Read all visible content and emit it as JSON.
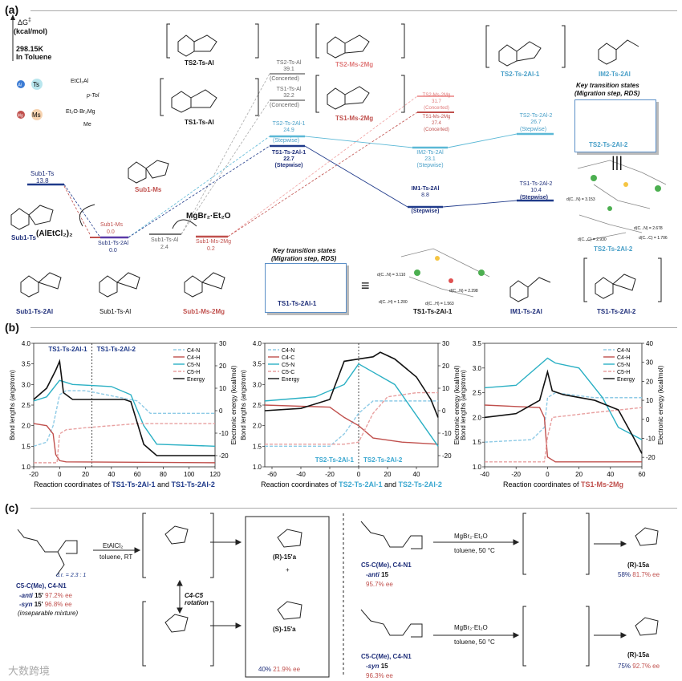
{
  "sections": {
    "a": "(a)",
    "b": "(b)",
    "c": "(c)"
  },
  "energy_diagram": {
    "axis_label": "ΔG",
    "dagger": "‡",
    "units": "(kcal/mol)",
    "temp": "298.15K",
    "solvent": "In Toluene",
    "legend_al": "EtCl₂Al",
    "legend_al_sub": "p-Tol",
    "legend_mg": "Et₂O·Br₂Mg",
    "legend_mg_sub": "Me",
    "reagent_al": "(AlEtCl₂)₂",
    "reagent_mg": "MgBr₂·Et₂O",
    "key_ts_title1": "Key transition states",
    "key_ts_title2": "(Migration step, RDS)",
    "equiv": "≡",
    "levels": [
      {
        "name": "Sub1-Ts",
        "value": "13.8",
        "cls": "navy"
      },
      {
        "name": "Sub1-Ms",
        "value": "0.0",
        "cls": "red"
      },
      {
        "name": "Sub1-Ts-2Al",
        "value": "0.0",
        "cls": "navy"
      },
      {
        "name": "Sub1-Ts-Al",
        "value": "2.4",
        "cls": "gray"
      },
      {
        "name": "Sub1-Ms-2Mg",
        "value": "0.2",
        "cls": "red"
      },
      {
        "name": "TS2-Ts-Al",
        "value": "39.1",
        "note": "(Concerted)",
        "cls": "gray"
      },
      {
        "name": "TS1-Ts-Al",
        "value": "32.2",
        "note": "(Concerted)",
        "cls": "gray"
      },
      {
        "name": "TS2-Ts-2Al-1",
        "value": "24.9",
        "note": "(Stepwise)",
        "cls": "lblue"
      },
      {
        "name": "TS1-Ts-2Al-1",
        "value": "22.7",
        "note": "(Stepwise)",
        "cls": "navy"
      },
      {
        "name": "TS2-Ms-2Mg",
        "value": "31.7",
        "note": "(Concerted)",
        "cls": "pink"
      },
      {
        "name": "TS1-Ms-2Mg",
        "value": "27.4",
        "note": "(Concerted)",
        "cls": "red"
      },
      {
        "name": "IM2-Ts-2Al",
        "value": "23.1",
        "note": "(Stepwise)",
        "cls": "lblue"
      },
      {
        "name": "IM1-Ts-2Al",
        "value": "8.8",
        "note": "(Stepwise)",
        "cls": "navy"
      },
      {
        "name": "TS2-Ts-2Al-2",
        "value": "26.7",
        "note": "(Stepwise)",
        "cls": "lblue"
      },
      {
        "name": "TS1-Ts-2Al-2",
        "value": "10.4",
        "note": "(Stepwise)",
        "cls": "navy"
      }
    ],
    "structure_labels": {
      "ts2_ts_al": "TS2-Ts-Al",
      "ts1_ts_al": "TS1-Ts-Al",
      "ts2_ms_2mg": "TS2-Ms-2Mg",
      "ts1_ms_2mg": "TS1-Ms-2Mg",
      "ts2_ts_2al_1": "TS2-Ts-2Al-1",
      "im2_ts_2al": "IM2-Ts-2Al",
      "ts2_ts_2al_2": "TS2-Ts-2Al-2",
      "ts2_ts_2al_2_3d": "TS2-Ts-2Al-2",
      "sub1_ms": "Sub1-Ms",
      "sub1_ts": "Sub1-Ts",
      "sub1_ts_2al": "Sub1-Ts-2Al",
      "sub1_ts_al": "Sub1-Ts-Al",
      "sub1_ms_2mg": "Sub1-Ms-2Mg",
      "ts1_ts_2al_1": "TS1-Ts-2Al-1",
      "ts1_ts_2al_1_3d": "TS1-Ts-2Al-1",
      "im1_ts_2al": "IM1-Ts-2Al",
      "ts1_ts_2al_2": "TS1-Ts-2Al-2"
    },
    "distances_ts1": [
      "d(C...N) = 3.110",
      "d(C...N) = 2.298",
      "d(C...H) = 1.200",
      "d(C...H) = 1.563"
    ],
    "distances_ts2": [
      "d(C...N) = 3.153",
      "d(C...N) = 2.678",
      "d(C...C) = 1.706",
      "d(C...C) = 2.930"
    ]
  },
  "chart_data": [
    {
      "type": "line",
      "legend": [
        "C4-N",
        "C4-H",
        "C5-N",
        "C5-H",
        "Energy"
      ],
      "xlabel_prefix": "Reaction coordinates of",
      "xlabel_a": "TS1-Ts-2Al-1",
      "xlabel_and": "and",
      "xlabel_b": "TS1-Ts-2Al-2",
      "ylabel": "Bond lengths (angstrom)",
      "y2label": "Electronic energy (kcal/mol)",
      "xlim": [
        -20,
        120
      ],
      "ylim": [
        1.0,
        4.0
      ],
      "y2lim": [
        -25,
        30
      ],
      "xticks": [
        "-20",
        "0",
        "20",
        "40",
        "60",
        "80",
        "100",
        "120"
      ],
      "yticks": [
        "1.0",
        "1.5",
        "2.0",
        "2.5",
        "3.0",
        "3.5",
        "4.0"
      ],
      "y2ticks": [
        "-20",
        "-10",
        "0",
        "10",
        "20",
        "30"
      ],
      "region_left": "TS1-Ts-2Al-1",
      "region_right": "TS1-Ts-2Al-2",
      "divider_x": 25,
      "series": [
        {
          "name": "C4-N",
          "x": [
            -20,
            -10,
            -5,
            0,
            5,
            20,
            60,
            70,
            120
          ],
          "y": [
            1.5,
            1.6,
            2.0,
            2.75,
            2.85,
            2.85,
            2.6,
            2.3,
            2.3
          ]
        },
        {
          "name": "C4-H",
          "x": [
            -20,
            -10,
            -5,
            -3,
            0,
            5,
            120
          ],
          "y": [
            2.05,
            2.0,
            1.8,
            1.3,
            1.15,
            1.12,
            1.1
          ]
        },
        {
          "name": "C5-N",
          "x": [
            -20,
            -10,
            0,
            10,
            40,
            55,
            65,
            75,
            120
          ],
          "y": [
            2.6,
            2.7,
            3.1,
            3.0,
            2.95,
            2.75,
            2.0,
            1.55,
            1.5
          ]
        },
        {
          "name": "C5-H",
          "x": [
            -20,
            -2,
            0,
            5,
            20,
            60,
            120
          ],
          "y": [
            1.1,
            1.1,
            1.8,
            1.9,
            1.95,
            2.05,
            2.05
          ]
        },
        {
          "name": "Energy",
          "x": [
            -20,
            -10,
            -3,
            0,
            3,
            10,
            30,
            50,
            55,
            65,
            75,
            120
          ],
          "y": [
            5,
            10,
            18,
            22,
            8,
            5,
            5,
            5,
            4,
            -15,
            -20,
            -20
          ]
        }
      ]
    },
    {
      "type": "line",
      "legend": [
        "C4-N",
        "C4-C",
        "C5-N",
        "C5-C",
        "Energy"
      ],
      "xlabel_prefix": "Reaction coordinates of",
      "xlabel_a": "TS2-Ts-2Al-1",
      "xlabel_and": "and",
      "xlabel_b": "TS2-Ts-2Al-2",
      "ylabel": "Bond lengths (angstrom)",
      "y2label": "Electronic energy (kcal/mol)",
      "xlim": [
        -65,
        55
      ],
      "ylim": [
        1.0,
        4.0
      ],
      "y2lim": [
        -25,
        30
      ],
      "xticks": [
        "-60",
        "-40",
        "-20",
        "0",
        "20",
        "40"
      ],
      "yticks": [
        "1.0",
        "1.5",
        "2.0",
        "2.5",
        "3.0",
        "3.5",
        "4.0"
      ],
      "y2ticks": [
        "-20",
        "-10",
        "0",
        "10",
        "20",
        "30"
      ],
      "region_left": "TS2-Ts-2Al-1",
      "region_right": "TS2-Ts-2Al-2",
      "divider_x": 0,
      "series": [
        {
          "name": "C4-N",
          "x": [
            -65,
            -20,
            -10,
            0,
            10,
            30,
            55
          ],
          "y": [
            1.5,
            1.5,
            1.8,
            2.3,
            2.6,
            2.6,
            2.6
          ]
        },
        {
          "name": "C4-C",
          "x": [
            -65,
            -20,
            -10,
            0,
            10,
            30,
            55
          ],
          "y": [
            2.5,
            2.45,
            2.2,
            2.0,
            1.7,
            1.6,
            1.55
          ]
        },
        {
          "name": "C5-N",
          "x": [
            -65,
            -30,
            -10,
            0,
            10,
            25,
            35,
            45,
            55
          ],
          "y": [
            2.6,
            2.7,
            3.0,
            3.5,
            3.3,
            3.0,
            2.5,
            2.0,
            1.5
          ]
        },
        {
          "name": "C5-C",
          "x": [
            -65,
            -10,
            0,
            10,
            20,
            40,
            55
          ],
          "y": [
            1.55,
            1.55,
            1.6,
            2.3,
            2.7,
            2.8,
            2.8
          ]
        },
        {
          "name": "Energy",
          "x": [
            -65,
            -40,
            -20,
            -10,
            0,
            10,
            15,
            25,
            40,
            50,
            55
          ],
          "y": [
            0,
            1,
            5,
            22,
            23,
            24,
            26,
            23,
            15,
            5,
            -3
          ]
        }
      ]
    },
    {
      "type": "line",
      "legend": [
        "C4-N",
        "C4-H",
        "C5-N",
        "C5-H",
        "Energy"
      ],
      "xlabel_prefix": "Reaction coordinates of",
      "xlabel_a": "TS1-Ms-2Mg",
      "xlabel_and": "",
      "xlabel_b": "",
      "ylabel": "Bond lengths (angstrom)",
      "y2label": "Electronic energy (kcal/mol)",
      "xlim": [
        -40,
        60
      ],
      "ylim": [
        1.0,
        3.5
      ],
      "y2lim": [
        -25,
        40
      ],
      "xticks": [
        "-40",
        "-20",
        "0",
        "20",
        "40",
        "60"
      ],
      "yticks": [
        "1.0",
        "1.5",
        "2.0",
        "2.5",
        "3.0",
        "3.5"
      ],
      "y2ticks": [
        "-20",
        "-10",
        "0",
        "10",
        "20",
        "30",
        "40"
      ],
      "series": [
        {
          "name": "C4-N",
          "x": [
            -40,
            -10,
            -2,
            0,
            5,
            30,
            60
          ],
          "y": [
            1.5,
            1.55,
            1.8,
            2.4,
            2.5,
            2.4,
            2.4
          ]
        },
        {
          "name": "C4-H",
          "x": [
            -40,
            -5,
            -2,
            0,
            5,
            60
          ],
          "y": [
            2.25,
            2.2,
            2.0,
            1.2,
            1.1,
            1.1
          ]
        },
        {
          "name": "C5-N",
          "x": [
            -40,
            -20,
            0,
            5,
            20,
            35,
            45,
            60
          ],
          "y": [
            2.6,
            2.65,
            3.2,
            3.1,
            3.0,
            2.4,
            1.8,
            1.55
          ]
        },
        {
          "name": "C5-H",
          "x": [
            -40,
            -2,
            0,
            3,
            30,
            60
          ],
          "y": [
            1.1,
            1.1,
            1.6,
            2.0,
            2.1,
            2.2
          ]
        },
        {
          "name": "Energy",
          "x": [
            -40,
            -20,
            -5,
            0,
            3,
            10,
            30,
            45,
            55,
            60
          ],
          "y": [
            1,
            3,
            10,
            25,
            15,
            13,
            10,
            5,
            -10,
            -18
          ]
        }
      ]
    }
  ],
  "scheme_c": {
    "left_title": "C5-C(Me), C4-N1",
    "anti_label": "-anti",
    "anti_cmpd": "15'",
    "anti_ee": "97.2% ee",
    "syn_label": "-syn",
    "syn_cmpd": "15'",
    "syn_ee": "96.8% ee",
    "mixture": "(inseparable mixture)",
    "dr": "d.r. = 2.3 : 1",
    "reagent1": "EtAlCl₂",
    "cond1": "toluene, RT",
    "rotation": "C4-C5",
    "rotation2": "rotation",
    "product_r": "(R)-15'a",
    "plus": "+",
    "product_s": "(S)-15'a",
    "yield1": "40%",
    "ee1": "21.9% ee",
    "anti_title": "C5-C(Me), C4-N1",
    "anti_line2": "-anti",
    "anti_num": "15",
    "anti_ee2": "95.7% ee",
    "reagent2": "MgBr₂·Et₂O",
    "cond2": "toluene, 50 °C",
    "prod_anti": "(R)-15a",
    "yield_anti": "58%",
    "ee_anti": "81.7% ee",
    "syn_title": "C5-C(Me), C4-N1",
    "syn_line2": "-syn",
    "syn_num": "15",
    "syn_ee2": "96.3% ee",
    "reagent3": "MgBr₂·Et₂O",
    "cond3": "toluene, 50 °C",
    "prod_syn": "(R)-15a",
    "yield_syn": "75%",
    "ee_syn": "92.7% ee",
    "watermark": "大数跨境"
  },
  "colors": {
    "navy": "#1f3a8a",
    "lightblue": "#5bb8d6",
    "red": "#c0504d",
    "pink": "#e08a8a",
    "gray": "#888888",
    "black": "#111111"
  }
}
